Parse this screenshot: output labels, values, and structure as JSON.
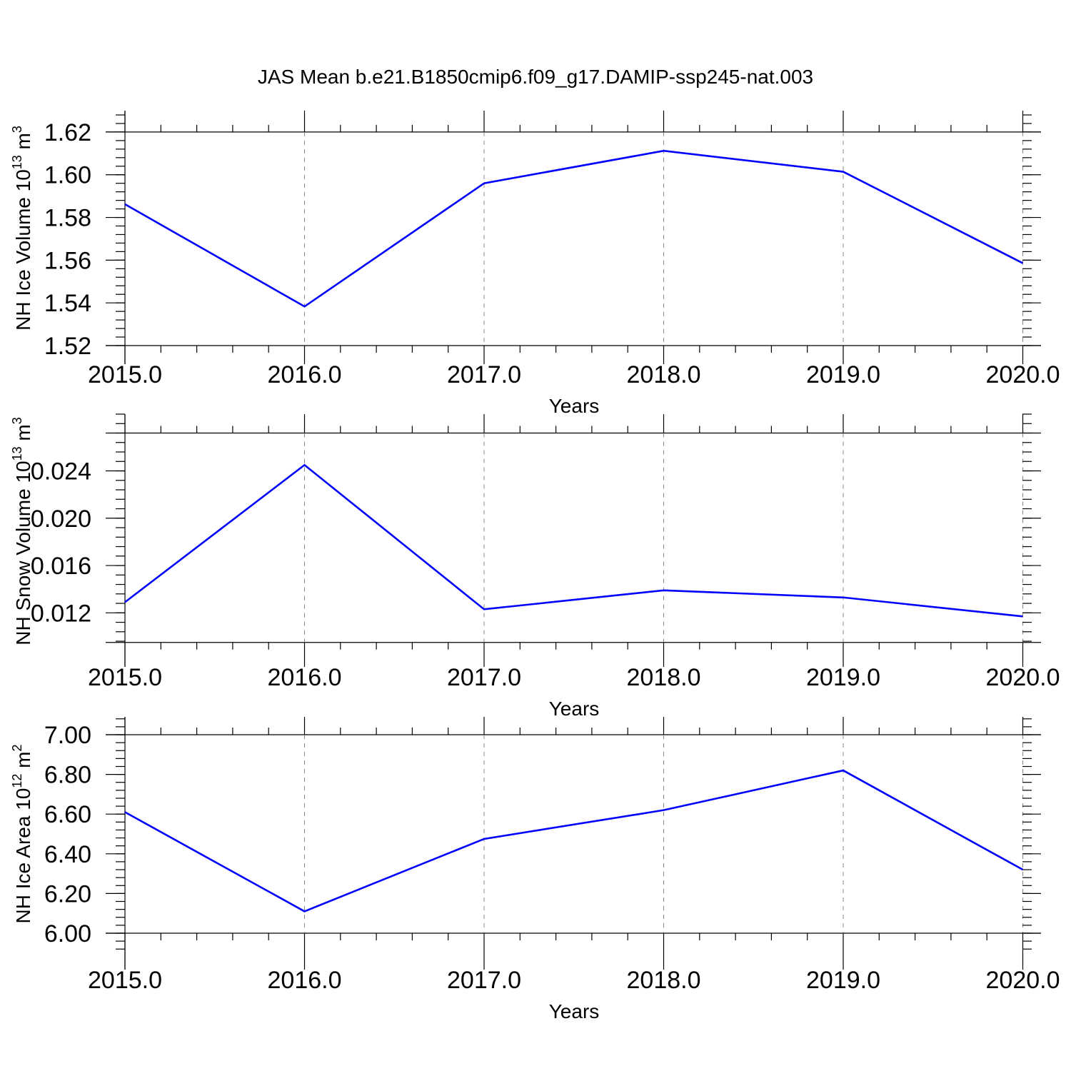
{
  "title": "JAS Mean b.e21.B1850cmip6.f09_g17.DAMIP-ssp245-nat.003",
  "line_color": "#0000ff",
  "chart_data": [
    {
      "type": "line",
      "x": [
        2015.0,
        2016.0,
        2017.0,
        2018.0,
        2019.0,
        2020.0
      ],
      "series": [
        {
          "values": [
            1.5862,
            1.5383,
            1.596,
            1.6112,
            1.6014,
            1.5586
          ]
        }
      ],
      "xlabel": "Years",
      "ylabel": {
        "main": "NH Ice Volume 10",
        "exp": "13",
        "unit": " m",
        "unit_exp": "3"
      },
      "xlim": [
        2015.0,
        2020.1
      ],
      "ylim": [
        1.52,
        1.63
      ],
      "xticks": [
        "2015.0",
        "2016.0",
        "2017.0",
        "2018.0",
        "2019.0",
        "2020.0"
      ],
      "yticks": [
        1.52,
        1.54,
        1.56,
        1.58,
        1.6,
        1.62
      ],
      "yticklabels": [
        "1.52",
        "1.54",
        "1.56",
        "1.58",
        "1.60",
        "1.62"
      ],
      "y_ref": 1.62,
      "grid": "vertical dashed"
    },
    {
      "type": "line",
      "x": [
        2015.0,
        2016.0,
        2017.0,
        2018.0,
        2019.0,
        2020.0
      ],
      "series": [
        {
          "values": [
            0.0129,
            0.0245,
            0.0123,
            0.0139,
            0.0133,
            0.0117
          ]
        }
      ],
      "xlabel": "Years",
      "ylabel": {
        "main": "NH Snow Volume 10",
        "exp": "13",
        "unit": " m",
        "unit_exp": "3"
      },
      "xlim": [
        2015.0,
        2020.1
      ],
      "ylim": [
        0.009,
        0.0288
      ],
      "xticks": [
        "2015.0",
        "2016.0",
        "2017.0",
        "2018.0",
        "2019.0",
        "2020.0"
      ],
      "yticks": [
        0.012,
        0.016,
        0.02,
        0.024
      ],
      "yticklabels": [
        "0.012",
        "0.016",
        "0.020",
        "0.024"
      ],
      "y_ref": 0.0272,
      "grid": "vertical dashed"
    },
    {
      "type": "line",
      "x": [
        2015.0,
        2016.0,
        2017.0,
        2018.0,
        2019.0,
        2020.0
      ],
      "series": [
        {
          "values": [
            6.61,
            6.11,
            6.475,
            6.62,
            6.82,
            6.32
          ]
        }
      ],
      "xlabel": "Years",
      "ylabel": {
        "main": "NH Ice Area 10",
        "exp": "12",
        "unit": " m",
        "unit_exp": "2"
      },
      "xlim": [
        2015.0,
        2020.1
      ],
      "ylim": [
        5.91,
        7.09
      ],
      "xticks": [
        "2015.0",
        "2016.0",
        "2017.0",
        "2018.0",
        "2019.0",
        "2020.0"
      ],
      "yticks": [
        6.0,
        6.2,
        6.4,
        6.6,
        6.8,
        7.0
      ],
      "yticklabels": [
        "6.00",
        "6.20",
        "6.40",
        "6.60",
        "6.80",
        "7.00"
      ],
      "y_ref": 7.0,
      "grid": "vertical dashed"
    }
  ]
}
